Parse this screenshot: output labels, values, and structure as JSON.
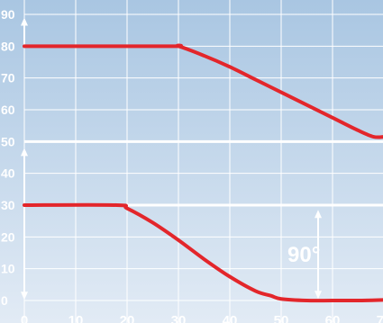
{
  "chart_data": {
    "type": "line",
    "xlim": [
      0,
      70
    ],
    "ylim": [
      0,
      90
    ],
    "x_ticks": [
      "0",
      "10",
      "20",
      "30",
      "40",
      "50",
      "60",
      "70"
    ],
    "y_ticks": [
      "0",
      "10",
      "20",
      "30",
      "40",
      "50",
      "60",
      "70",
      "80",
      "90"
    ],
    "grid": true,
    "series": [
      {
        "x": [
          0,
          28,
          30,
          35,
          40,
          45,
          50,
          55,
          60,
          65,
          68,
          70
        ],
        "y": [
          80,
          80,
          80,
          77,
          73.5,
          69.5,
          65.5,
          61.5,
          57.5,
          53.5,
          51.5,
          51.5
        ]
      },
      {
        "x": [
          0,
          18,
          20,
          25,
          30,
          35,
          40,
          45,
          48,
          50,
          55,
          60,
          65,
          70
        ],
        "y": [
          30,
          30,
          29,
          24.5,
          19,
          13,
          7.5,
          3,
          1.5,
          0.5,
          0,
          0,
          0,
          0.2
        ]
      }
    ],
    "annotations": [
      {
        "text": "90°",
        "x": 55,
        "y": 15
      }
    ],
    "colors": {
      "line": "#e3262b",
      "grid": "#ffffff",
      "background_top": "#a9c6e2",
      "background_bottom": "#e2ebf5"
    }
  }
}
